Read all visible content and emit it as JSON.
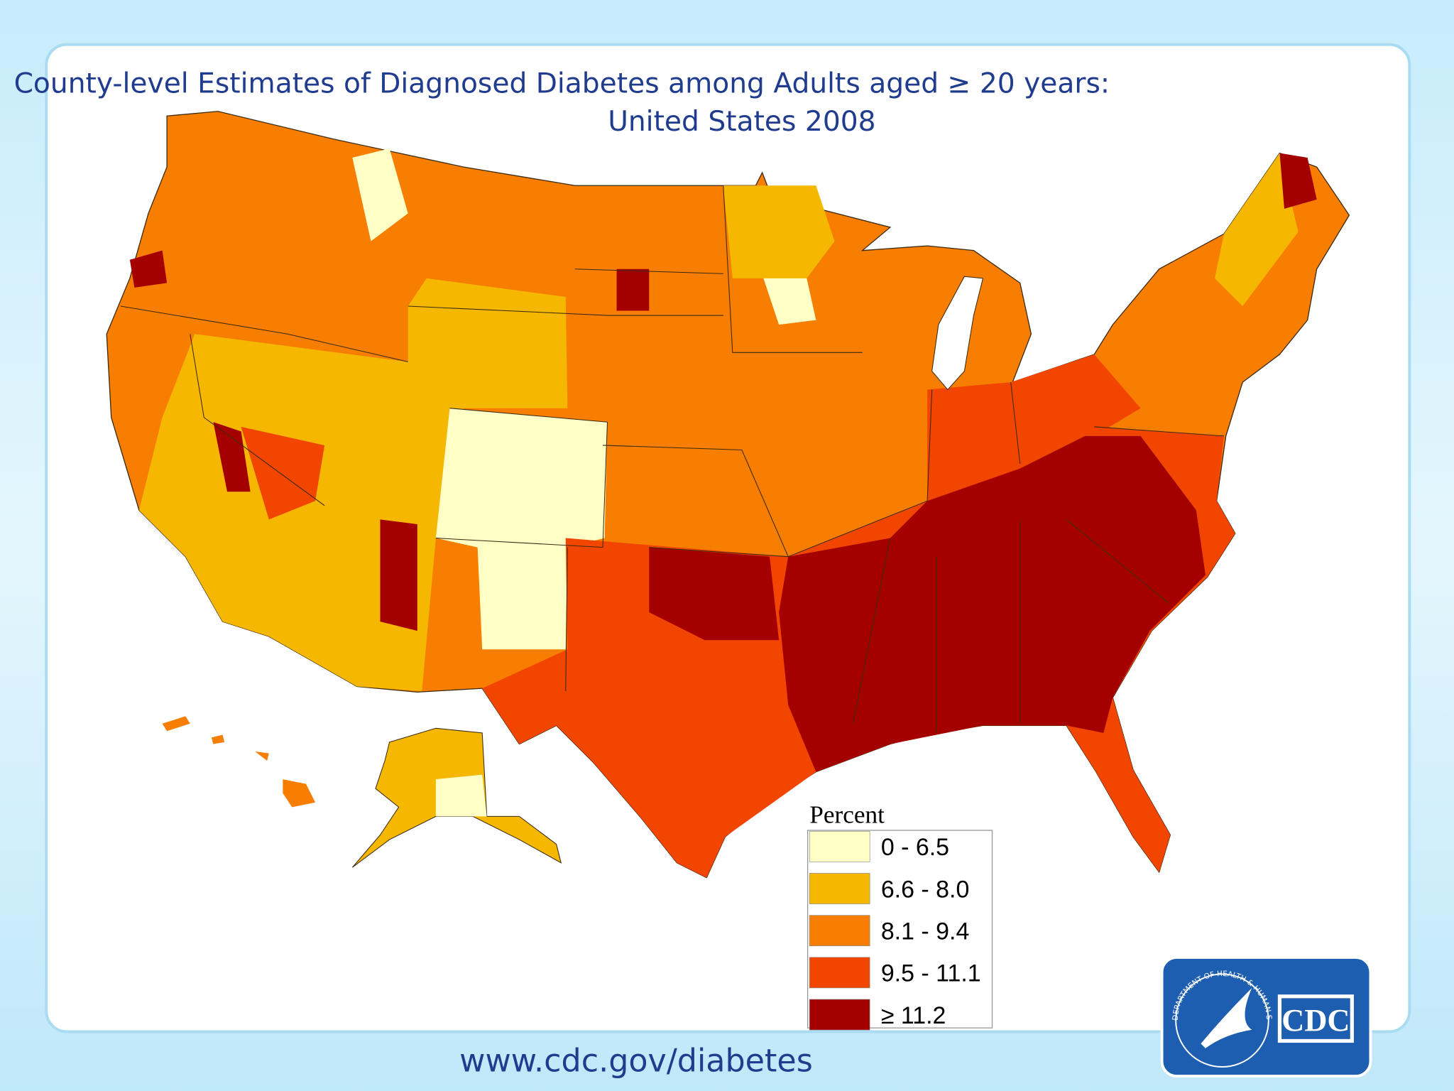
{
  "header": {
    "title": "County-level Estimates of Diagnosed Diabetes among Adults aged ≥ 20 years:",
    "subtitle": "United States 2008"
  },
  "legend": {
    "title": "Percent",
    "items": [
      {
        "label": "0 - 6.5",
        "color": "#ffffc6"
      },
      {
        "label": "6.6 - 8.0",
        "color": "#f5b700"
      },
      {
        "label": "8.1 - 9.4",
        "color": "#f77e00"
      },
      {
        "label": "9.5 - 11.1",
        "color": "#f24600"
      },
      {
        "label": "≥ 11.2",
        "color": "#a50000"
      }
    ]
  },
  "footer": {
    "url": "www.cdc.gov/diabetes"
  },
  "logo": {
    "text": "CDC",
    "seal": "DEPARTMENT OF HEALTH & HUMAN SERVICES·USA"
  }
}
